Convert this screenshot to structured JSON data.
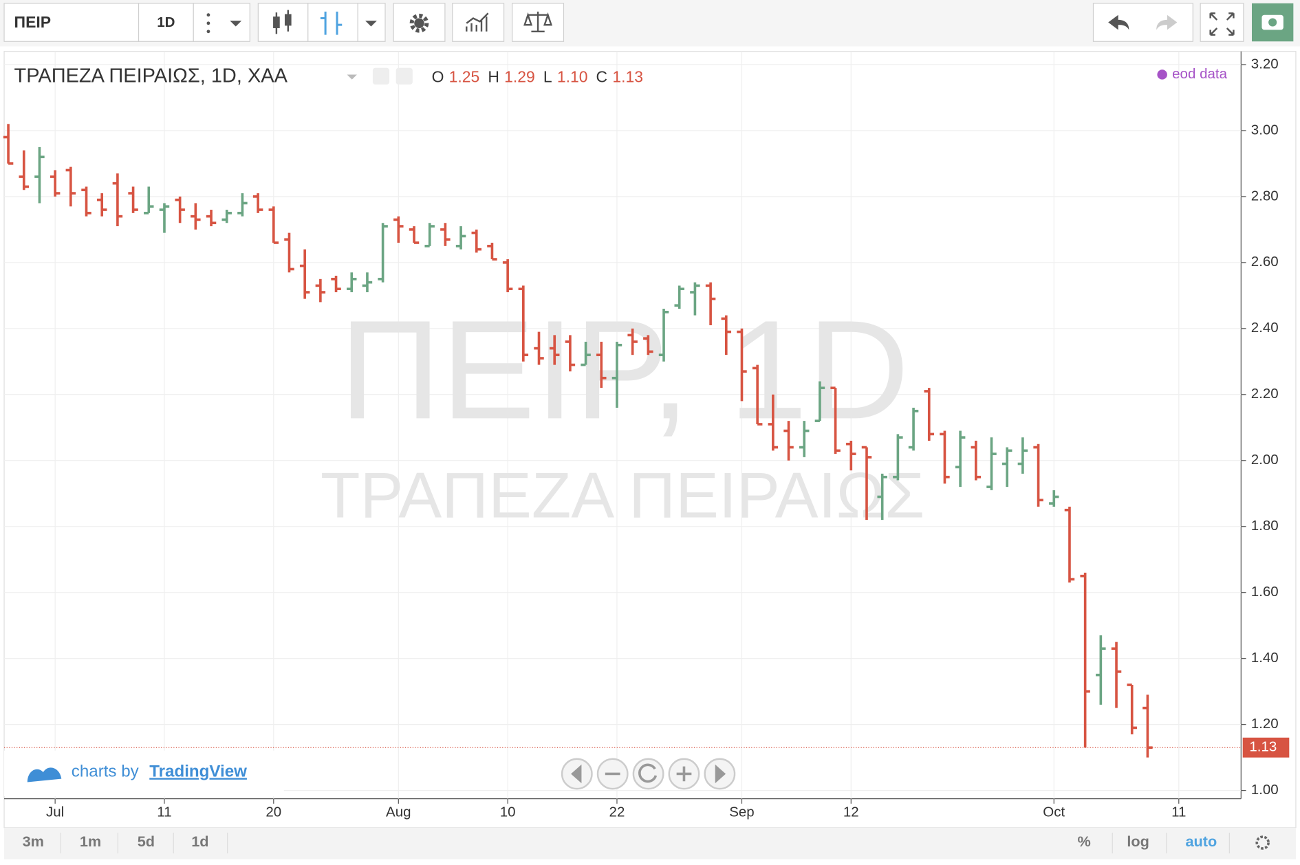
{
  "ui": {
    "symbol": "ΠΕΙΡ",
    "interval": "1D",
    "ranges": [
      "3m",
      "1m",
      "5d",
      "1d"
    ],
    "scale_buttons": [
      "%",
      "log",
      "auto"
    ],
    "branding_prefix": "charts by",
    "branding_name": "TradingView"
  },
  "chart_data": {
    "type": "ohlc",
    "title": "ΤΡΑΠΕΖΑ ΠΕΙΡΑΙΩΣ, 1D, ΧΑΑ",
    "watermark": "ΠΕΙΡ, 1D",
    "watermark_subtitle": "ΤΡΑΠΕΖΑ ΠΕΙΡΑΙΩΣ",
    "source_label": "eod data",
    "legend_ohlc": {
      "labels": [
        "O",
        "H",
        "L",
        "C"
      ],
      "values": [
        "1.25",
        "1.29",
        "1.10",
        "1.13"
      ]
    },
    "up_color": "#6ba583",
    "down_color": "#d75442",
    "grid": true,
    "categories": [
      null,
      null,
      null,
      "Jul",
      null,
      null,
      null,
      null,
      null,
      null,
      "11",
      null,
      null,
      null,
      null,
      null,
      null,
      "20",
      null,
      null,
      null,
      null,
      null,
      null,
      null,
      "Aug",
      null,
      null,
      null,
      null,
      null,
      null,
      "10",
      null,
      null,
      null,
      null,
      null,
      null,
      "22",
      null,
      null,
      null,
      null,
      null,
      null,
      null,
      "Sep",
      null,
      null,
      null,
      null,
      null,
      null,
      "12",
      null,
      null,
      null,
      null,
      null,
      null,
      null,
      null,
      null,
      null,
      null,
      null,
      "Oct",
      null,
      null,
      null,
      null,
      null,
      null,
      null,
      "11"
    ],
    "open": [
      2.98,
      2.86,
      2.86,
      2.86,
      2.88,
      2.82,
      2.79,
      2.84,
      2.81,
      2.75,
      2.76,
      2.79,
      2.74,
      2.74,
      2.73,
      2.75,
      2.8,
      2.76,
      2.67,
      2.59,
      2.53,
      2.55,
      2.52,
      2.53,
      2.55,
      2.73,
      2.7,
      2.65,
      2.7,
      2.65,
      2.69,
      2.65,
      2.6,
      2.52,
      2.34,
      2.34,
      2.36,
      2.29,
      2.32,
      2.25,
      2.38,
      2.37,
      2.32,
      2.47,
      2.51,
      2.53,
      2.43,
      2.39,
      2.28,
      2.11,
      2.09,
      2.04,
      2.12,
      2.22,
      2.05,
      2.04,
      1.89,
      1.95,
      2.04,
      2.21,
      2.08,
      1.98,
      2.04,
      1.92,
      1.99,
      1.99,
      2.04,
      1.87,
      1.85,
      1.65,
      1.35,
      1.43,
      1.32,
      1.25,
      null,
      null
    ],
    "high": [
      3.02,
      2.94,
      2.95,
      2.88,
      2.89,
      2.83,
      2.81,
      2.87,
      2.83,
      2.83,
      2.78,
      2.8,
      2.78,
      2.76,
      2.76,
      2.81,
      2.81,
      2.77,
      2.69,
      2.64,
      2.55,
      2.56,
      2.57,
      2.57,
      2.72,
      2.74,
      2.71,
      2.72,
      2.72,
      2.71,
      2.7,
      2.66,
      2.61,
      2.53,
      2.39,
      2.38,
      2.38,
      2.36,
      2.36,
      2.36,
      2.4,
      2.38,
      2.46,
      2.53,
      2.54,
      2.54,
      2.44,
      2.4,
      2.29,
      2.2,
      2.12,
      2.12,
      2.24,
      2.22,
      2.06,
      2.04,
      1.96,
      2.08,
      2.16,
      2.22,
      2.09,
      2.09,
      2.06,
      2.07,
      2.04,
      2.07,
      2.05,
      1.91,
      1.86,
      1.66,
      1.47,
      1.45,
      1.32,
      1.29,
      null,
      null
    ],
    "low": [
      2.9,
      2.82,
      2.78,
      2.8,
      2.77,
      2.74,
      2.74,
      2.71,
      2.75,
      2.75,
      2.69,
      2.72,
      2.7,
      2.71,
      2.72,
      2.74,
      2.75,
      2.66,
      2.57,
      2.49,
      2.48,
      2.51,
      2.51,
      2.51,
      2.54,
      2.66,
      2.66,
      2.65,
      2.65,
      2.64,
      2.63,
      2.61,
      2.51,
      2.3,
      2.29,
      2.29,
      2.27,
      2.29,
      2.22,
      2.16,
      2.32,
      2.32,
      2.3,
      2.46,
      2.44,
      2.41,
      2.32,
      2.18,
      2.11,
      2.03,
      2.0,
      2.01,
      2.12,
      2.02,
      1.97,
      1.82,
      1.82,
      1.94,
      2.03,
      2.06,
      1.93,
      1.92,
      1.94,
      1.91,
      1.92,
      1.96,
      1.86,
      1.86,
      1.63,
      1.13,
      1.26,
      1.25,
      1.17,
      1.1,
      null,
      null
    ],
    "close": [
      2.9,
      2.83,
      2.92,
      2.81,
      2.81,
      2.75,
      2.76,
      2.74,
      2.76,
      2.77,
      2.77,
      2.76,
      2.73,
      2.72,
      2.75,
      2.78,
      2.76,
      2.66,
      2.58,
      2.51,
      2.51,
      2.52,
      2.55,
      2.54,
      2.71,
      2.71,
      2.66,
      2.71,
      2.67,
      2.68,
      2.64,
      2.61,
      2.52,
      2.32,
      2.31,
      2.32,
      2.29,
      2.32,
      2.25,
      2.35,
      2.36,
      2.33,
      2.45,
      2.52,
      2.53,
      2.49,
      2.39,
      2.27,
      2.11,
      2.04,
      2.04,
      2.09,
      2.22,
      2.03,
      2.02,
      2.01,
      1.95,
      2.07,
      2.15,
      2.08,
      1.95,
      2.07,
      1.95,
      2.02,
      2.03,
      2.03,
      1.88,
      1.89,
      1.64,
      1.3,
      1.43,
      1.36,
      1.19,
      1.13,
      null,
      null
    ],
    "ylim": [
      0.98,
      3.24
    ],
    "yticks": [
      {
        "value": 1.0,
        "label": "1.00"
      },
      {
        "value": 1.2,
        "label": "1.20"
      },
      {
        "value": 1.4,
        "label": "1.40"
      },
      {
        "value": 1.6,
        "label": "1.60"
      },
      {
        "value": 1.8,
        "label": "1.80"
      },
      {
        "value": 2.0,
        "label": "2.00"
      },
      {
        "value": 2.2,
        "label": "2.20"
      },
      {
        "value": 2.4,
        "label": "2.40"
      },
      {
        "value": 2.6,
        "label": "2.60"
      },
      {
        "value": 2.8,
        "label": "2.80"
      },
      {
        "value": 3.0,
        "label": "3.00"
      },
      {
        "value": 3.2,
        "label": "3.20"
      }
    ]
  }
}
